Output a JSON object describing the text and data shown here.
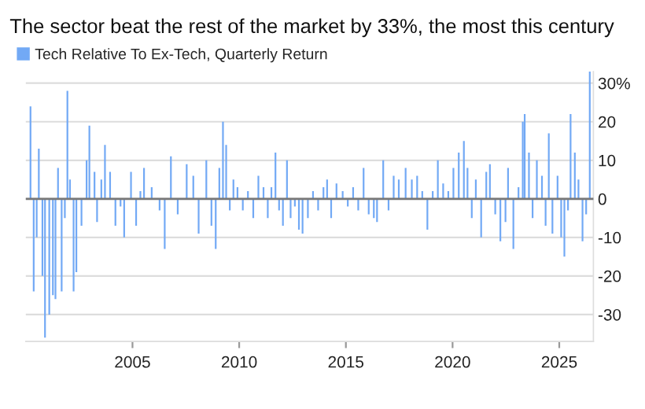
{
  "chart_data": {
    "type": "bar",
    "title": "The sector beat the rest of the market by 33%, the most this century",
    "x": [
      2000.22,
      2000.37,
      2000.51,
      2000.61,
      2000.78,
      2000.9,
      2001.1,
      2001.27,
      2001.39,
      2001.51,
      2001.68,
      2001.83,
      2001.95,
      2002.07,
      2002.24,
      2002.37,
      2002.61,
      2002.85,
      2002.98,
      2003.22,
      2003.34,
      2003.54,
      2003.71,
      2003.95,
      2004.2,
      2004.44,
      2004.61,
      2004.93,
      2005.17,
      2005.37,
      2005.54,
      2005.9,
      2006.27,
      2006.51,
      2006.8,
      2007.12,
      2007.54,
      2007.85,
      2008.1,
      2008.46,
      2008.7,
      2008.9,
      2009.07,
      2009.24,
      2009.39,
      2009.56,
      2009.73,
      2009.92,
      2010.17,
      2010.41,
      2010.66,
      2010.9,
      2011.14,
      2011.34,
      2011.51,
      2011.7,
      2011.87,
      2012.05,
      2012.24,
      2012.41,
      2012.61,
      2012.8,
      2012.97,
      2013.22,
      2013.46,
      2013.7,
      2013.95,
      2014.12,
      2014.31,
      2014.56,
      2014.85,
      2015.09,
      2015.34,
      2015.58,
      2015.83,
      2016.07,
      2016.31,
      2016.46,
      2016.75,
      2017.0,
      2017.24,
      2017.48,
      2017.8,
      2018.09,
      2018.34,
      2018.58,
      2018.82,
      2019.07,
      2019.31,
      2019.56,
      2019.8,
      2020.04,
      2020.29,
      2020.53,
      2020.7,
      2020.9,
      2021.09,
      2021.34,
      2021.58,
      2021.75,
      2022.0,
      2022.24,
      2022.48,
      2022.6,
      2022.85,
      2023.09,
      2023.29,
      2023.38,
      2023.58,
      2023.75,
      2023.95,
      2024.19,
      2024.36,
      2024.51,
      2024.68,
      2024.92,
      2025.09,
      2025.24,
      2025.41,
      2025.53,
      2025.73,
      2025.9,
      2026.09,
      2026.26,
      2026.43
    ],
    "series": [
      {
        "name": "Tech Relative To Ex-Tech, Quarterly Return",
        "color": "#72a9f5",
        "values": [
          24,
          -24,
          -10,
          13,
          -20,
          -36,
          -30,
          -25,
          -26,
          8,
          -24,
          -5,
          28,
          5,
          -24,
          -19,
          -7,
          10,
          19,
          7,
          -6,
          5,
          14,
          7,
          -7,
          -2,
          -10,
          7,
          -7,
          2,
          8,
          3,
          -3,
          -13,
          11,
          -4,
          9,
          6,
          -9,
          10,
          -7,
          -13,
          8,
          20,
          14,
          -3,
          5,
          3,
          -3,
          2,
          -5,
          6,
          3,
          -5,
          3,
          12,
          -3,
          -7,
          10,
          -5,
          -2,
          -8,
          -9,
          -5,
          2,
          -3,
          3,
          5,
          -5,
          4,
          2,
          -2,
          3,
          -3,
          8,
          -4,
          -5,
          -6,
          10,
          -3,
          6,
          5,
          8,
          5,
          6,
          2,
          -8,
          2,
          10,
          4,
          2,
          8,
          12,
          15,
          8,
          -5,
          5,
          -10,
          7,
          9,
          -4,
          -11,
          -6,
          8,
          -13,
          3,
          20,
          22,
          12,
          -5,
          10,
          6,
          -7,
          17,
          -9,
          6,
          -10,
          -15,
          -3,
          22,
          12,
          5,
          -11,
          -4,
          33
        ]
      }
    ],
    "ylim": [
      -37,
      33
    ],
    "yticks": [
      -30,
      -20,
      -10,
      0,
      10,
      20,
      {
        "value": 30,
        "label": "30%"
      }
    ],
    "xlim": [
      2000.0,
      2026.6
    ],
    "xticks": [
      2005,
      2010,
      2015,
      2020,
      2025
    ],
    "ref_lines": [
      {
        "axis": "y",
        "value": 0,
        "color": "#777777"
      }
    ],
    "grid": "y",
    "legend": "top left"
  }
}
